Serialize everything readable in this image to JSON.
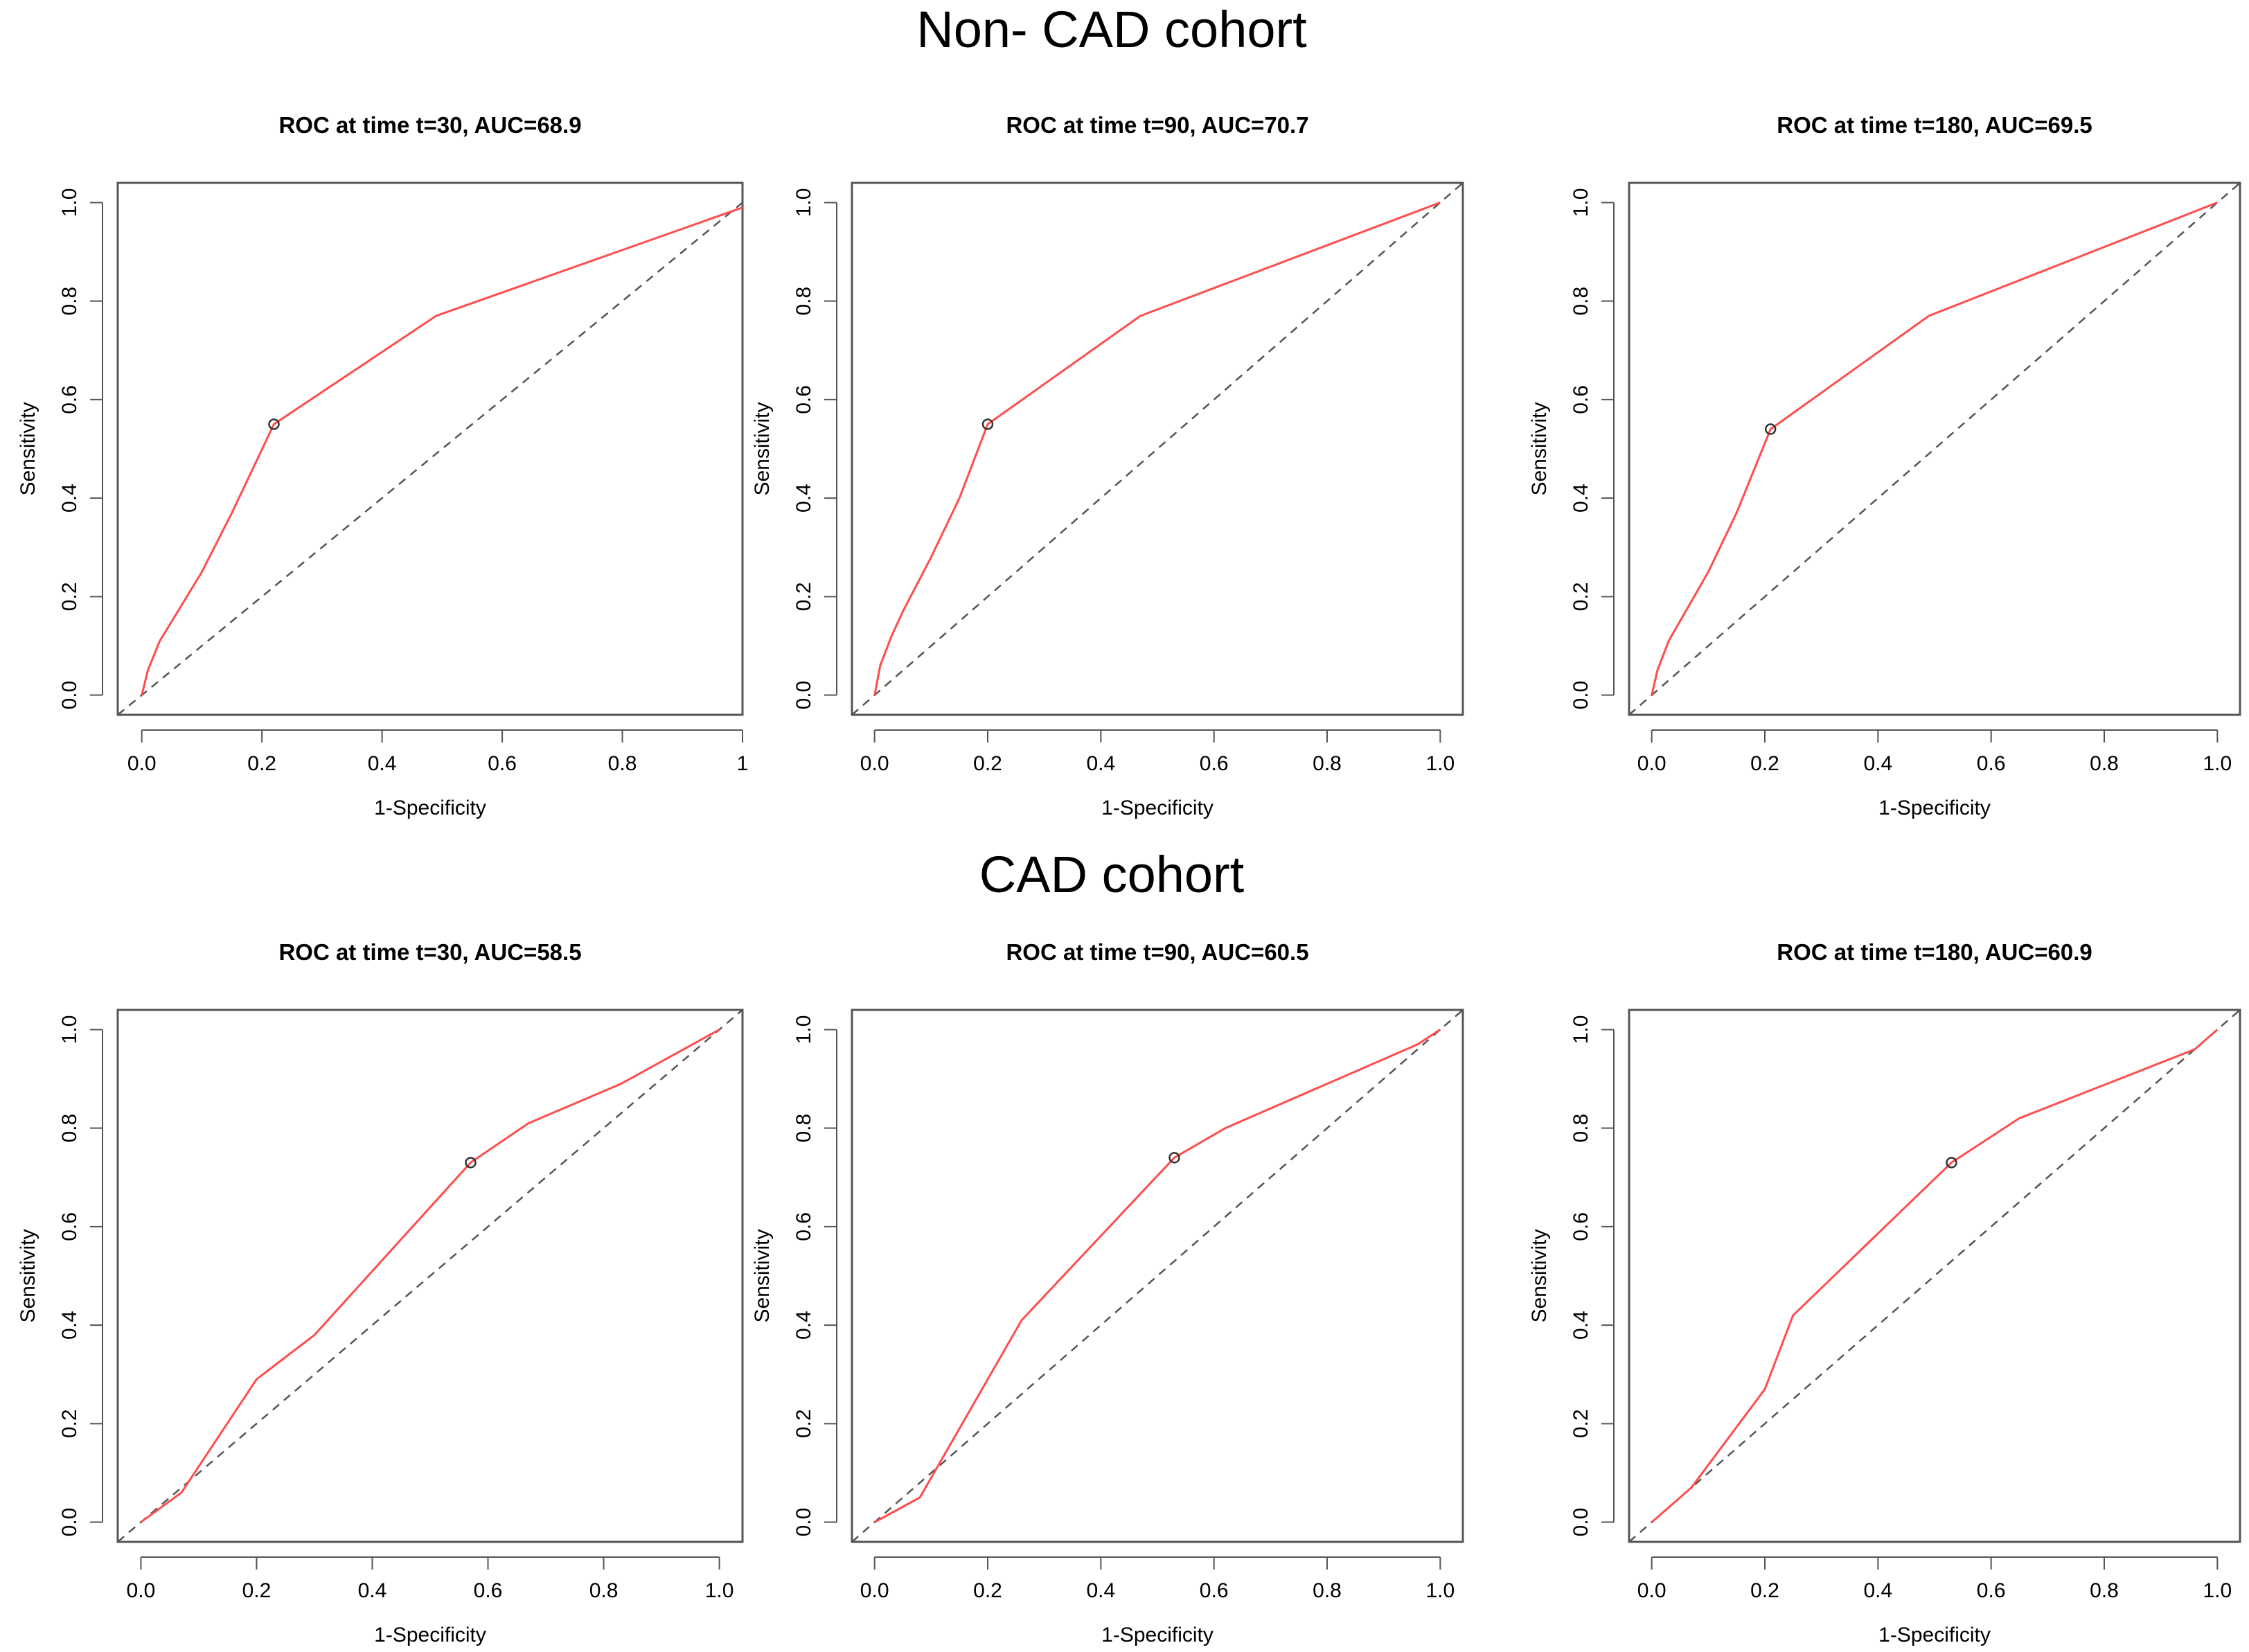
{
  "figure": {
    "row_titles": [
      "Non- CAD cohort",
      "CAD cohort"
    ]
  },
  "colors": {
    "roc_curve": "#ff4d4d",
    "reference_line": "#555555",
    "frame": "#555555",
    "marker": "#333333"
  },
  "chart_data": [
    {
      "type": "line",
      "cohort": "Non- CAD cohort",
      "title": "ROC at time t=30, AUC=68.9",
      "xlabel": "1-Specificity",
      "ylabel": "Sensitivity",
      "xlim": [
        -0.04,
        1.0
      ],
      "ylim": [
        -0.04,
        1.04
      ],
      "xticks": [
        0.0,
        0.2,
        0.4,
        0.6,
        0.8,
        1.0
      ],
      "xtick_labels": [
        "0.0",
        "0.2",
        "0.4",
        "0.6",
        "0.8",
        "1"
      ],
      "yticks": [
        0.0,
        0.2,
        0.4,
        0.6,
        0.8,
        1.0
      ],
      "ytick_labels": [
        "0.0",
        "0.2",
        "0.4",
        "0.6",
        "0.8",
        "1.0"
      ],
      "grid": false,
      "reference_line": [
        [
          -0.04,
          -0.04
        ],
        [
          1.0,
          1.0
        ]
      ],
      "series": [
        {
          "name": "ROC",
          "x": [
            0.0,
            0.01,
            0.03,
            0.05,
            0.1,
            0.15,
            0.22,
            0.49,
            1.0
          ],
          "y": [
            0.0,
            0.05,
            0.11,
            0.15,
            0.25,
            0.37,
            0.55,
            0.77,
            0.99
          ]
        }
      ],
      "marker": {
        "x": 0.22,
        "y": 0.55
      }
    },
    {
      "type": "line",
      "cohort": "Non- CAD cohort",
      "title": "ROC at time t=90, AUC=70.7",
      "xlabel": "1-Specificity",
      "ylabel": "Sensitivity",
      "xlim": [
        -0.04,
        1.04
      ],
      "ylim": [
        -0.04,
        1.04
      ],
      "xticks": [
        0.0,
        0.2,
        0.4,
        0.6,
        0.8,
        1.0
      ],
      "xtick_labels": [
        "0.0",
        "0.2",
        "0.4",
        "0.6",
        "0.8",
        "1.0"
      ],
      "yticks": [
        0.0,
        0.2,
        0.4,
        0.6,
        0.8,
        1.0
      ],
      "ytick_labels": [
        "0.0",
        "0.2",
        "0.4",
        "0.6",
        "0.8",
        "1.0"
      ],
      "grid": false,
      "reference_line": [
        [
          -0.04,
          -0.04
        ],
        [
          1.04,
          1.04
        ]
      ],
      "series": [
        {
          "name": "ROC",
          "x": [
            0.0,
            0.01,
            0.03,
            0.05,
            0.1,
            0.15,
            0.2,
            0.47,
            1.0
          ],
          "y": [
            0.0,
            0.06,
            0.12,
            0.17,
            0.28,
            0.4,
            0.55,
            0.77,
            1.0
          ]
        }
      ],
      "marker": {
        "x": 0.2,
        "y": 0.55
      }
    },
    {
      "type": "line",
      "cohort": "Non- CAD cohort",
      "title": "ROC at time t=180, AUC=69.5",
      "xlabel": "1-Specificity",
      "ylabel": "Sensitivity",
      "xlim": [
        -0.04,
        1.04
      ],
      "ylim": [
        -0.04,
        1.04
      ],
      "xticks": [
        0.0,
        0.2,
        0.4,
        0.6,
        0.8,
        1.0
      ],
      "xtick_labels": [
        "0.0",
        "0.2",
        "0.4",
        "0.6",
        "0.8",
        "1.0"
      ],
      "yticks": [
        0.0,
        0.2,
        0.4,
        0.6,
        0.8,
        1.0
      ],
      "ytick_labels": [
        "0.0",
        "0.2",
        "0.4",
        "0.6",
        "0.8",
        "1.0"
      ],
      "grid": false,
      "reference_line": [
        [
          -0.04,
          -0.04
        ],
        [
          1.04,
          1.04
        ]
      ],
      "series": [
        {
          "name": "ROC",
          "x": [
            0.0,
            0.01,
            0.03,
            0.05,
            0.1,
            0.15,
            0.21,
            0.49,
            1.0
          ],
          "y": [
            0.0,
            0.05,
            0.11,
            0.15,
            0.25,
            0.37,
            0.54,
            0.77,
            1.0
          ]
        }
      ],
      "marker": {
        "x": 0.21,
        "y": 0.54
      }
    },
    {
      "type": "line",
      "cohort": "CAD cohort",
      "title": "ROC at time t=30, AUC=58.5",
      "xlabel": "1-Specificity",
      "ylabel": "Sensitivity",
      "xlim": [
        -0.04,
        1.04
      ],
      "ylim": [
        -0.04,
        1.04
      ],
      "xticks": [
        0.0,
        0.2,
        0.4,
        0.6,
        0.8,
        1.0
      ],
      "xtick_labels": [
        "0.0",
        "0.2",
        "0.4",
        "0.6",
        "0.8",
        "1.0"
      ],
      "yticks": [
        0.0,
        0.2,
        0.4,
        0.6,
        0.8,
        1.0
      ],
      "ytick_labels": [
        "0.0",
        "0.2",
        "0.4",
        "0.6",
        "0.8",
        "1.0"
      ],
      "grid": false,
      "reference_line": [
        [
          -0.04,
          -0.04
        ],
        [
          1.04,
          1.04
        ]
      ],
      "series": [
        {
          "name": "ROC",
          "x": [
            0.0,
            0.07,
            0.2,
            0.3,
            0.57,
            0.67,
            0.83,
            1.0
          ],
          "y": [
            0.0,
            0.06,
            0.29,
            0.38,
            0.73,
            0.81,
            0.89,
            1.0
          ]
        }
      ],
      "marker": {
        "x": 0.57,
        "y": 0.73
      }
    },
    {
      "type": "line",
      "cohort": "CAD cohort",
      "title": "ROC at time t=90, AUC=60.5",
      "xlabel": "1-Specificity",
      "ylabel": "Sensitivity",
      "xlim": [
        -0.04,
        1.04
      ],
      "ylim": [
        -0.04,
        1.04
      ],
      "xticks": [
        0.0,
        0.2,
        0.4,
        0.6,
        0.8,
        1.0
      ],
      "xtick_labels": [
        "0.0",
        "0.2",
        "0.4",
        "0.6",
        "0.8",
        "1.0"
      ],
      "yticks": [
        0.0,
        0.2,
        0.4,
        0.6,
        0.8,
        1.0
      ],
      "ytick_labels": [
        "0.0",
        "0.2",
        "0.4",
        "0.6",
        "0.8",
        "1.0"
      ],
      "grid": false,
      "reference_line": [
        [
          -0.04,
          -0.04
        ],
        [
          1.04,
          1.04
        ]
      ],
      "series": [
        {
          "name": "ROC",
          "x": [
            0.0,
            0.08,
            0.19,
            0.26,
            0.53,
            0.62,
            0.96,
            1.0
          ],
          "y": [
            0.0,
            0.05,
            0.27,
            0.41,
            0.74,
            0.8,
            0.97,
            1.0
          ]
        }
      ],
      "marker": {
        "x": 0.53,
        "y": 0.74
      }
    },
    {
      "type": "line",
      "cohort": "CAD cohort",
      "title": "ROC at time t=180, AUC=60.9",
      "xlabel": "1-Specificity",
      "ylabel": "Sensitivity",
      "xlim": [
        -0.04,
        1.04
      ],
      "ylim": [
        -0.04,
        1.04
      ],
      "xticks": [
        0.0,
        0.2,
        0.4,
        0.6,
        0.8,
        1.0
      ],
      "xtick_labels": [
        "0.0",
        "0.2",
        "0.4",
        "0.6",
        "0.8",
        "1.0"
      ],
      "yticks": [
        0.0,
        0.2,
        0.4,
        0.6,
        0.8,
        1.0
      ],
      "ytick_labels": [
        "0.0",
        "0.2",
        "0.4",
        "0.6",
        "0.8",
        "1.0"
      ],
      "grid": false,
      "reference_line": [
        [
          -0.04,
          -0.04
        ],
        [
          1.04,
          1.04
        ]
      ],
      "series": [
        {
          "name": "ROC",
          "x": [
            0.0,
            0.07,
            0.2,
            0.25,
            0.53,
            0.65,
            0.96,
            1.0
          ],
          "y": [
            0.0,
            0.07,
            0.27,
            0.42,
            0.73,
            0.82,
            0.96,
            1.0
          ]
        }
      ],
      "marker": {
        "x": 0.53,
        "y": 0.73
      }
    }
  ]
}
